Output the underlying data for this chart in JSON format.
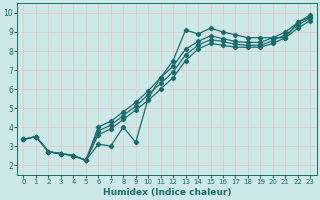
{
  "xlabel": "Humidex (Indice chaleur)",
  "xlim": [
    -0.5,
    23.5
  ],
  "ylim": [
    1.5,
    10.5
  ],
  "xticks": [
    0,
    1,
    2,
    3,
    4,
    5,
    6,
    7,
    8,
    9,
    10,
    11,
    12,
    13,
    14,
    15,
    16,
    17,
    18,
    19,
    20,
    21,
    22,
    23
  ],
  "yticks": [
    2,
    3,
    4,
    5,
    6,
    7,
    8,
    9,
    10
  ],
  "bg_color": "#cce8e8",
  "grid_color": "#e8c8c8",
  "line_color": "#1a6b6b",
  "line_width": 0.9,
  "marker": "D",
  "marker_size": 2.2,
  "lines": [
    {
      "x": [
        0,
        1,
        2,
        3,
        4,
        5,
        6,
        7,
        8,
        9,
        10,
        11,
        12,
        13,
        14,
        15,
        16,
        17,
        18,
        19,
        20,
        21,
        22,
        23
      ],
      "y": [
        3.35,
        3.5,
        2.7,
        2.6,
        2.5,
        2.25,
        3.1,
        3.0,
        4.0,
        3.2,
        5.5,
        6.6,
        7.5,
        9.1,
        8.9,
        9.2,
        9.0,
        8.85,
        8.7,
        8.7,
        8.7,
        8.7,
        9.5,
        9.8
      ]
    },
    {
      "x": [
        0,
        1,
        2,
        3,
        4,
        5,
        6,
        7,
        8,
        9,
        10,
        11,
        12,
        13,
        14,
        15,
        16,
        17,
        18,
        19,
        20,
        21,
        22,
        23
      ],
      "y": [
        3.35,
        3.5,
        2.7,
        2.6,
        2.5,
        2.25,
        3.6,
        3.9,
        4.4,
        4.9,
        5.4,
        6.0,
        6.6,
        7.5,
        8.1,
        8.4,
        8.3,
        8.2,
        8.2,
        8.2,
        8.4,
        8.7,
        9.2,
        9.6
      ]
    },
    {
      "x": [
        0,
        1,
        2,
        3,
        4,
        5,
        6,
        7,
        8,
        9,
        10,
        11,
        12,
        13,
        14,
        15,
        16,
        17,
        18,
        19,
        20,
        21,
        22,
        23
      ],
      "y": [
        3.35,
        3.5,
        2.7,
        2.6,
        2.5,
        2.25,
        3.8,
        4.1,
        4.6,
        5.1,
        5.7,
        6.3,
        6.9,
        7.8,
        8.3,
        8.6,
        8.5,
        8.35,
        8.3,
        8.3,
        8.55,
        8.85,
        9.35,
        9.75
      ]
    },
    {
      "x": [
        0,
        1,
        2,
        3,
        4,
        5,
        6,
        7,
        8,
        9,
        10,
        11,
        12,
        13,
        14,
        15,
        16,
        17,
        18,
        19,
        20,
        21,
        22,
        23
      ],
      "y": [
        3.35,
        3.5,
        2.7,
        2.6,
        2.5,
        2.25,
        4.0,
        4.3,
        4.8,
        5.3,
        5.9,
        6.6,
        7.2,
        8.1,
        8.5,
        8.8,
        8.65,
        8.5,
        8.45,
        8.45,
        8.7,
        9.0,
        9.5,
        9.9
      ]
    }
  ]
}
